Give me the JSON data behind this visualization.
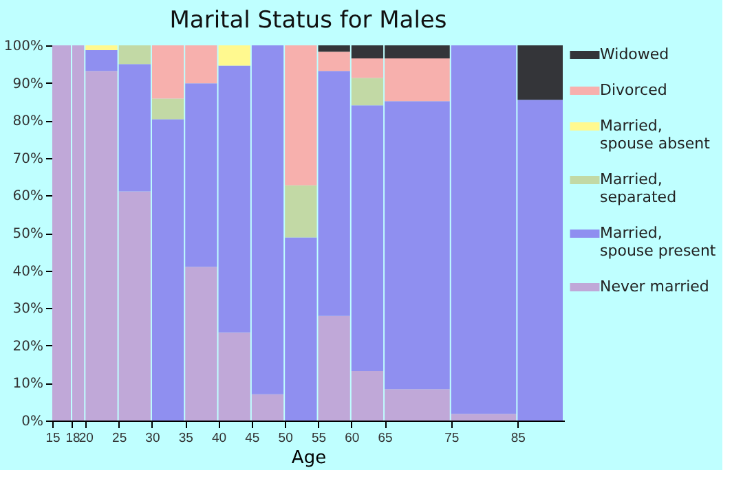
{
  "chart_data": {
    "type": "bar",
    "title": "Marital Status for Males",
    "xlabel": "Age",
    "stacked": true,
    "legend": "right",
    "x": [
      16.5,
      19,
      22.5,
      27.5,
      32.5,
      37.5,
      42.5,
      47.5,
      52.5,
      57.5,
      62.5,
      70,
      80,
      88.5
    ],
    "xlim": [
      15,
      92
    ],
    "xticks": [
      15,
      18,
      20,
      25,
      30,
      35,
      40,
      45,
      50,
      55,
      60,
      65,
      75,
      85
    ],
    "ylim": [
      0,
      100
    ],
    "yticks": [
      {
        "value": 0,
        "label": "0%"
      },
      {
        "value": 10,
        "label": "10%"
      },
      {
        "value": 20,
        "label": "20%"
      },
      {
        "value": 30,
        "label": "30%"
      },
      {
        "value": 40,
        "label": "40%"
      },
      {
        "value": 50,
        "label": "50%"
      },
      {
        "value": 60,
        "label": "60%"
      },
      {
        "value": 70,
        "label": "70%"
      },
      {
        "value": 80,
        "label": "80%"
      },
      {
        "value": 90,
        "label": "90%"
      },
      {
        "value": 100,
        "label": "100%"
      }
    ],
    "series": [
      {
        "name": "Never married",
        "color": "#c0a8d8",
        "values": [
          100,
          100,
          93.2,
          61.1,
          0,
          41.0,
          23.5,
          7.0,
          0,
          27.9,
          13.2,
          8.4,
          1.8,
          0
        ]
      },
      {
        "name": "Married, spouse present",
        "color": "#8f8ff0",
        "values": [
          0,
          0,
          5.5,
          33.9,
          80.3,
          48.9,
          71.1,
          93.0,
          48.8,
          65.3,
          70.8,
          76.7,
          98.2,
          85.5
        ]
      },
      {
        "name": "Married, separated",
        "color": "#c2d9a5",
        "values": [
          0,
          0,
          0,
          5.0,
          5.5,
          0,
          0,
          0,
          13.9,
          0,
          7.3,
          0,
          0,
          0
        ]
      },
      {
        "name": "Married, spouse absent",
        "color": "#fff98f",
        "values": [
          0,
          0,
          1.3,
          0,
          0,
          0,
          5.4,
          0,
          0,
          0,
          0,
          0,
          0,
          0
        ]
      },
      {
        "name": "Divorced",
        "color": "#f7b0ad",
        "values": [
          0,
          0,
          0,
          0,
          14.2,
          10.1,
          0,
          0,
          37.3,
          5.1,
          5.2,
          11.4,
          0,
          0
        ]
      },
      {
        "name": "Widowed",
        "color": "#343539",
        "values": [
          0,
          0,
          0,
          0,
          0,
          0,
          0,
          0,
          0,
          1.7,
          3.5,
          3.5,
          0,
          14.5
        ]
      }
    ]
  }
}
